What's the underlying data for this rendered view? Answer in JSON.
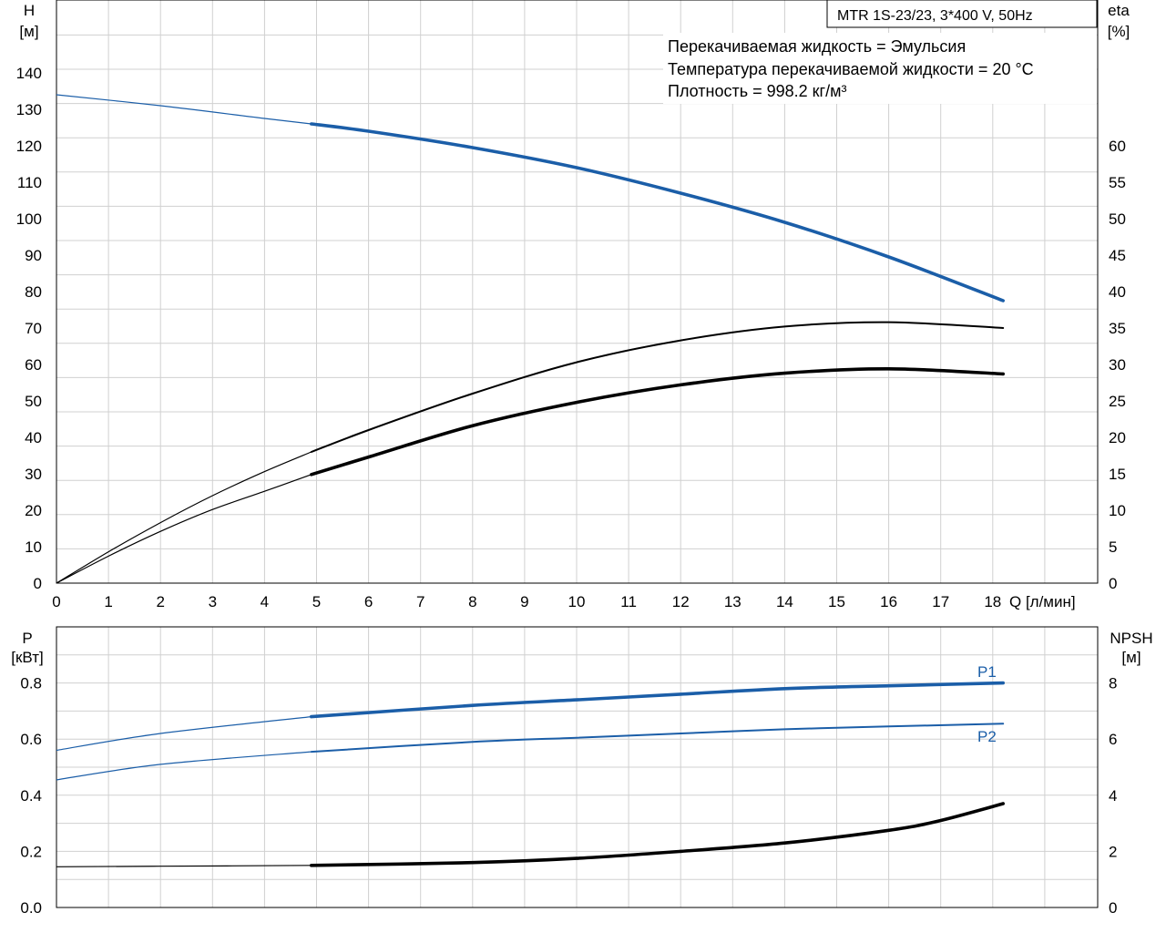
{
  "title_box": "MTR 1S-23/23, 3*400 V, 50Hz",
  "fluid_info": [
    "Перекачиваемая жидкость = Эмульсия",
    "Температура перекачиваемой жидкости = 20 °C",
    "Плотность = 998.2 кг/м³"
  ],
  "colors": {
    "blue": "#1b5ea8",
    "black": "#000000",
    "grid": "#d0d0d0"
  },
  "chart_data": [
    {
      "type": "line",
      "name": "upper-chart",
      "xlabel": "Q [л/мин]",
      "ylabel_left": [
        "H",
        "[м]"
      ],
      "ylabel_right": [
        "eta",
        "[%]"
      ],
      "xlim": [
        0,
        20
      ],
      "ylim_left": [
        0,
        160
      ],
      "ylim_right": [
        0,
        80
      ],
      "x_ticks": [
        "0",
        "1",
        "2",
        "3",
        "4",
        "5",
        "6",
        "7",
        "8",
        "9",
        "10",
        "11",
        "12",
        "13",
        "14",
        "15",
        "16",
        "17",
        "18"
      ],
      "y_ticks_left": [
        "0",
        "10",
        "20",
        "30",
        "40",
        "50",
        "60",
        "70",
        "80",
        "90",
        "100",
        "110",
        "120",
        "130",
        "140"
      ],
      "y_ticks_right": [
        "0",
        "5",
        "10",
        "15",
        "20",
        "25",
        "30",
        "35",
        "40",
        "45",
        "50",
        "55",
        "60"
      ],
      "grid": true,
      "series": [
        {
          "axis": "left",
          "color": "blue",
          "x": [
            0,
            2,
            4,
            4.9,
            6,
            8,
            10,
            12,
            14,
            16,
            18.2
          ],
          "y": [
            134,
            131,
            127.5,
            126,
            124,
            119.5,
            114,
            107,
            99,
            89.5,
            77.5
          ]
        },
        {
          "axis": "right",
          "color": "black",
          "x": [
            0,
            1,
            2,
            3,
            4,
            4.9,
            6,
            8,
            10,
            12,
            14,
            16,
            18.2
          ],
          "y": [
            0,
            4.3,
            8.3,
            12,
            15.3,
            18,
            21,
            26,
            30.3,
            33.3,
            35.2,
            35.8,
            35
          ]
        },
        {
          "axis": "right",
          "color": "black",
          "x": [
            0,
            1,
            2,
            3,
            4,
            4.9,
            6,
            8,
            10,
            12,
            14,
            16,
            18.2
          ],
          "y": [
            0,
            3.7,
            7.1,
            10.1,
            12.6,
            14.9,
            17.3,
            21.6,
            24.8,
            27.2,
            28.8,
            29.4,
            28.7
          ]
        }
      ]
    },
    {
      "type": "line",
      "name": "lower-chart",
      "ylabel_left": [
        "P",
        "[кВт]"
      ],
      "ylabel_right": [
        "NPSH",
        "[м]"
      ],
      "xlim": [
        0,
        20
      ],
      "ylim_left": [
        0,
        1.0
      ],
      "ylim_right": [
        0,
        10
      ],
      "y_ticks_left": [
        "0.0",
        "0.2",
        "0.4",
        "0.6",
        "0.8"
      ],
      "y_ticks_right": [
        "0",
        "2",
        "4",
        "6",
        "8"
      ],
      "grid": true,
      "series": [
        {
          "name": "P1",
          "axis": "left",
          "color": "blue",
          "x": [
            0,
            2,
            4.9,
            8,
            10,
            12,
            14,
            16,
            18.2
          ],
          "y": [
            0.56,
            0.62,
            0.68,
            0.72,
            0.74,
            0.76,
            0.78,
            0.79,
            0.8
          ]
        },
        {
          "name": "P2",
          "axis": "left",
          "color": "blue",
          "x": [
            0,
            2,
            4.9,
            8,
            10,
            12,
            14,
            16,
            18.2
          ],
          "y": [
            0.455,
            0.51,
            0.555,
            0.59,
            0.605,
            0.62,
            0.635,
            0.645,
            0.655
          ]
        },
        {
          "axis": "right",
          "color": "black",
          "x": [
            0,
            2,
            4.9,
            8,
            10,
            12,
            14,
            16,
            17,
            18.2
          ],
          "y": [
            1.45,
            1.47,
            1.5,
            1.6,
            1.75,
            2.0,
            2.3,
            2.75,
            3.1,
            3.7
          ]
        }
      ]
    }
  ]
}
